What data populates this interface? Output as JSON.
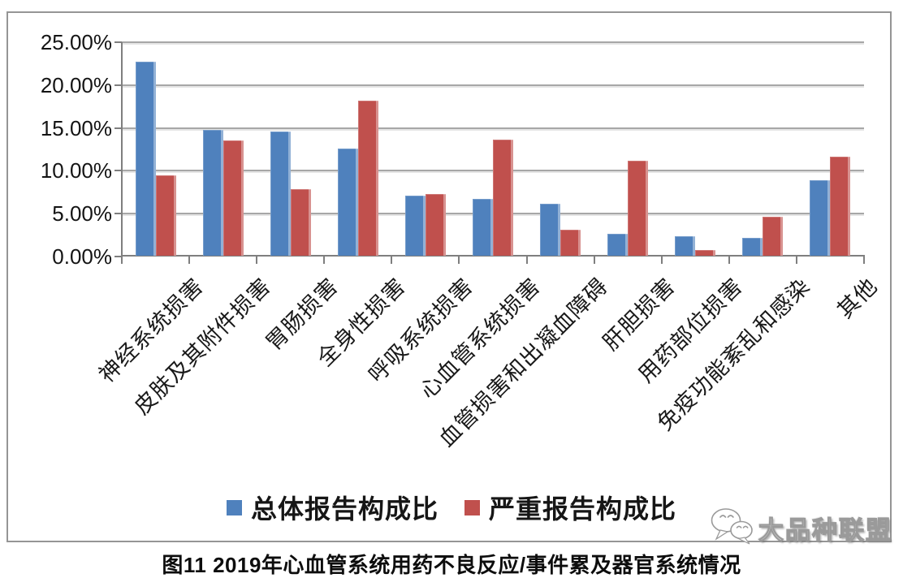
{
  "chart_data": {
    "type": "bar",
    "categories": [
      "神经系统损害",
      "皮肤及其附件损害",
      "胃肠损害",
      "全身性损害",
      "呼吸系统损害",
      "心血管系统损害",
      "血管损害和出凝血障碍",
      "肝胆损害",
      "用药部位损害",
      "免疫功能紊乱和感染",
      "其他"
    ],
    "series": [
      {
        "name": "总体报告构成比",
        "color": "#4f81bd",
        "values": [
          22.6,
          14.7,
          14.5,
          12.5,
          7.0,
          6.6,
          6.1,
          2.6,
          2.3,
          2.1,
          8.8
        ]
      },
      {
        "name": "严重报告构成比",
        "color": "#c0504d",
        "values": [
          9.4,
          13.4,
          7.8,
          18.1,
          7.2,
          13.5,
          3.0,
          11.1,
          0.7,
          4.5,
          11.6
        ]
      }
    ],
    "ylim": [
      0,
      25
    ],
    "ytick_step": 5,
    "yticks": [
      "25.00%",
      "20.00%",
      "15.00%",
      "10.00%",
      "5.00%",
      "0.00%"
    ],
    "xlabel": "",
    "ylabel": "",
    "grid": true,
    "legend_position": "bottom"
  },
  "caption": "图11 2019年心血管系统用药不良反应/事件累及器官系统情况",
  "watermark": {
    "label": "大品种联盟",
    "icon": "wechat-chat-bubbles-icon"
  },
  "colors": {
    "total_series": "#4f81bd",
    "severe_series": "#c0504d",
    "gridline": "#a7a7a7",
    "axis": "#7f7f7f",
    "frame_border": "#959595"
  }
}
